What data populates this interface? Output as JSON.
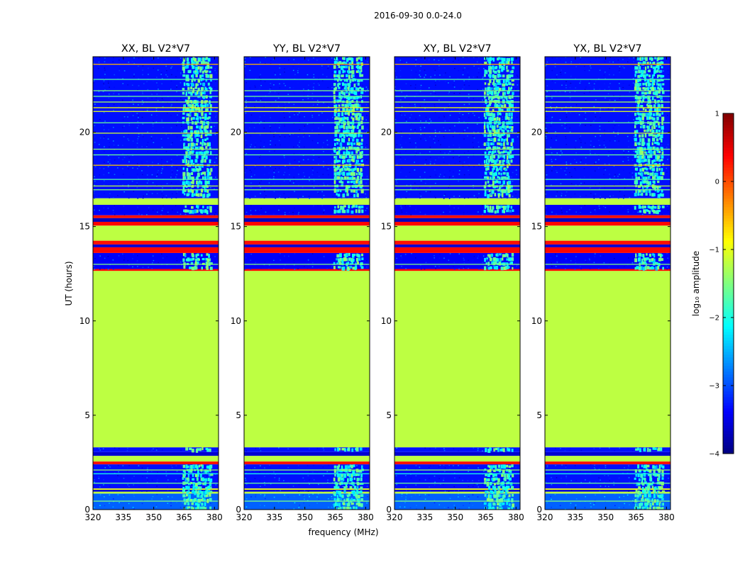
{
  "figure": {
    "suptitle": "2016-09-30 0.0-24.0"
  },
  "chart_data": {
    "type": "heatmap",
    "shared": {
      "xlabel": "frequency (MHz)",
      "ylabel": "UT (hours)",
      "xlim": [
        320,
        382
      ],
      "ylim": [
        0,
        24
      ],
      "xticks": [
        320,
        335,
        350,
        365,
        380
      ],
      "yticks": [
        0,
        5,
        10,
        15,
        20
      ],
      "colormap": "jet",
      "noise_band_mhz": [
        364,
        378
      ],
      "bands": [
        {
          "from": 0.0,
          "to": 0.85,
          "level": -2.9,
          "texture": "noise"
        },
        {
          "from": 0.85,
          "to": 0.95,
          "level": -1.2,
          "texture": "flat"
        },
        {
          "from": 0.95,
          "to": 1.05,
          "level": -3.6,
          "texture": "noise"
        },
        {
          "from": 1.05,
          "to": 1.12,
          "level": -0.9,
          "texture": "flat"
        },
        {
          "from": 1.12,
          "to": 2.4,
          "level": -3.3,
          "texture": "noise"
        },
        {
          "from": 2.4,
          "to": 2.55,
          "level": 0.3,
          "texture": "flat"
        },
        {
          "from": 2.55,
          "to": 2.85,
          "level": -1.2,
          "texture": "flat"
        },
        {
          "from": 2.85,
          "to": 3.05,
          "level": -3.6,
          "texture": "flat"
        },
        {
          "from": 3.05,
          "to": 3.3,
          "level": -3.3,
          "texture": "noise"
        },
        {
          "from": 3.3,
          "to": 12.65,
          "level": -1.2,
          "texture": "flat"
        },
        {
          "from": 12.65,
          "to": 12.75,
          "level": 0.35,
          "texture": "flat"
        },
        {
          "from": 12.75,
          "to": 13.6,
          "level": -3.4,
          "texture": "noise"
        },
        {
          "from": 13.6,
          "to": 13.9,
          "level": 0.35,
          "texture": "flat"
        },
        {
          "from": 13.9,
          "to": 14.05,
          "level": -3.6,
          "texture": "flat"
        },
        {
          "from": 14.05,
          "to": 14.25,
          "level": 0.3,
          "texture": "flat"
        },
        {
          "from": 14.25,
          "to": 15.05,
          "level": -1.2,
          "texture": "flat"
        },
        {
          "from": 15.05,
          "to": 15.25,
          "level": 0.35,
          "texture": "flat"
        },
        {
          "from": 15.25,
          "to": 15.45,
          "level": -3.7,
          "texture": "flat"
        },
        {
          "from": 15.45,
          "to": 15.6,
          "level": 0.3,
          "texture": "flat"
        },
        {
          "from": 15.6,
          "to": 16.15,
          "level": -3.4,
          "texture": "noise"
        },
        {
          "from": 16.15,
          "to": 16.5,
          "level": -1.2,
          "texture": "flat"
        },
        {
          "from": 16.5,
          "to": 24.0,
          "level": -3.3,
          "texture": "noise"
        }
      ],
      "lines_ut": [
        {
          "ut": 0.45,
          "level": -1.5
        },
        {
          "ut": 1.4,
          "level": -1.6
        },
        {
          "ut": 1.9,
          "level": -2.0
        },
        {
          "ut": 2.1,
          "level": -1.4
        },
        {
          "ut": 13.0,
          "level": -1.5
        },
        {
          "ut": 16.95,
          "level": -1.5
        },
        {
          "ut": 17.15,
          "level": -1.2
        },
        {
          "ut": 17.5,
          "level": -1.7
        },
        {
          "ut": 18.25,
          "level": -0.6
        },
        {
          "ut": 18.8,
          "level": -1.6
        },
        {
          "ut": 19.1,
          "level": -1.4
        },
        {
          "ut": 19.95,
          "level": -1.1
        },
        {
          "ut": 20.5,
          "level": -1.6
        },
        {
          "ut": 21.1,
          "level": -1.0
        },
        {
          "ut": 21.3,
          "level": -0.9
        },
        {
          "ut": 21.6,
          "level": -1.3
        },
        {
          "ut": 21.9,
          "level": -1.6
        },
        {
          "ut": 22.2,
          "level": -1.5
        },
        {
          "ut": 22.8,
          "level": -1.7
        },
        {
          "ut": 23.6,
          "level": -0.5
        }
      ],
      "subplots": [
        {
          "title": "XX, BL V2*V7",
          "show_ylabel": true,
          "show_xlabel": false
        },
        {
          "title": "YY, BL V2*V7",
          "show_ylabel": false,
          "show_xlabel": true
        },
        {
          "title": "XY, BL V2*V7",
          "show_ylabel": false,
          "show_xlabel": false
        },
        {
          "title": "YX, BL V2*V7",
          "show_ylabel": false,
          "show_xlabel": false
        }
      ]
    },
    "colorbar": {
      "label": "log₁₀ amplitude",
      "range": [
        -4,
        1
      ],
      "ticks": [
        1,
        0,
        -1,
        -2,
        -3,
        -4
      ]
    }
  }
}
